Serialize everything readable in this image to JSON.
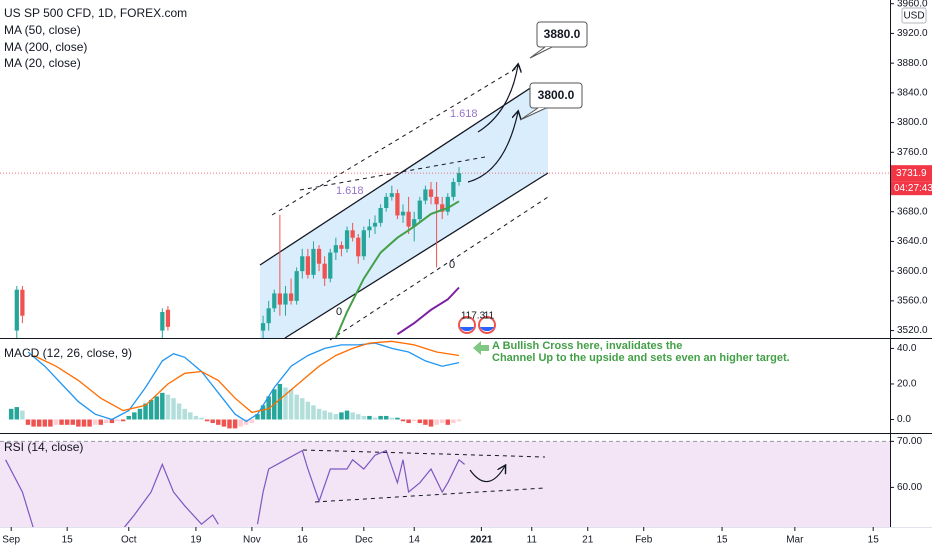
{
  "chart_data": [
    {
      "type": "candlestick",
      "title": "US SP 500 CFD, 1D, FOREX.com",
      "legend": [
        "MA (50, close)",
        "MA (200, close)",
        "MA (20, close)"
      ],
      "currency": "USD",
      "ylim": [
        3510,
        3965
      ],
      "yticks": [
        {
          "value": 3520,
          "label": "3520.0"
        },
        {
          "value": 3560,
          "label": "3560.0"
        },
        {
          "value": 3600,
          "label": "3600.0"
        },
        {
          "value": 3640,
          "label": "3640.0"
        },
        {
          "value": 3680,
          "label": "3680.0"
        },
        {
          "value": 3760,
          "label": "3760.0"
        },
        {
          "value": 3800,
          "label": "3800.0"
        },
        {
          "value": 3840,
          "label": "3840.0"
        },
        {
          "value": 3880,
          "label": "3880.0"
        },
        {
          "value": 3920,
          "label": "3920.0"
        },
        {
          "value": 3960,
          "label": "3960.0"
        }
      ],
      "x": [
        1,
        2,
        27,
        28,
        45,
        46,
        47,
        48,
        49,
        50,
        51,
        52,
        53,
        54,
        55,
        56,
        57,
        58,
        59,
        60,
        61,
        62,
        63,
        64,
        65,
        66,
        67,
        68,
        69,
        70,
        71,
        72,
        73,
        74,
        75,
        76,
        77,
        78,
        79,
        80
      ],
      "open": [
        3520,
        3575,
        3520,
        3548,
        3520,
        3530,
        3550,
        3570,
        3555,
        3570,
        3560,
        3600,
        3620,
        3595,
        3630,
        3610,
        3590,
        3625,
        3635,
        3630,
        3655,
        3645,
        3620,
        3655,
        3660,
        3665,
        3685,
        3700,
        3705,
        3675,
        3680,
        3660,
        3670,
        3695,
        3710,
        3700,
        3690,
        3680,
        3700,
        3720
      ],
      "high": [
        3580,
        3580,
        3550,
        3553,
        3540,
        3560,
        3575,
        3676,
        3580,
        3590,
        3605,
        3630,
        3630,
        3640,
        3635,
        3620,
        3630,
        3645,
        3640,
        3660,
        3665,
        3650,
        3660,
        3670,
        3675,
        3690,
        3705,
        3715,
        3710,
        3690,
        3700,
        3680,
        3700,
        3715,
        3720,
        3720,
        3700,
        3705,
        3725,
        3740
      ],
      "low": [
        3510,
        3530,
        3510,
        3520,
        3510,
        3520,
        3545,
        3540,
        3540,
        3555,
        3555,
        3590,
        3590,
        3590,
        3600,
        3580,
        3585,
        3615,
        3620,
        3625,
        3640,
        3610,
        3615,
        3645,
        3650,
        3660,
        3680,
        3695,
        3670,
        3665,
        3650,
        3640,
        3665,
        3690,
        3690,
        3605,
        3670,
        3675,
        3695,
        3715
      ],
      "close": [
        3575,
        3540,
        3545,
        3525,
        3530,
        3550,
        3570,
        3555,
        3570,
        3560,
        3600,
        3620,
        3595,
        3630,
        3610,
        3590,
        3625,
        3635,
        3630,
        3655,
        3645,
        3620,
        3655,
        3660,
        3665,
        3685,
        3700,
        3705,
        3675,
        3680,
        3660,
        3670,
        3695,
        3710,
        3700,
        3690,
        3680,
        3700,
        3720,
        3731.9
      ],
      "up_color": "#26a69a",
      "down_color": "#ef5350",
      "overlays": [
        {
          "color": "#43a047",
          "x": [
            58,
            60,
            63,
            66,
            69,
            72,
            75,
            78,
            80
          ],
          "values": [
            3510,
            3545,
            3590,
            3625,
            3645,
            3660,
            3677,
            3685,
            3694
          ]
        },
        {
          "color": "#7b1fa2",
          "x": [
            69,
            72,
            75,
            78,
            80
          ],
          "values": [
            3515,
            3530,
            3548,
            3562,
            3578
          ]
        }
      ],
      "last_price": 3731.9,
      "last_price_color": "#f23645",
      "countdown": "04:27:43",
      "annotations": {
        "target_high": "3880.0",
        "target_low": "3800.0",
        "fib_upper": "1.618",
        "fib_lower": "1.618",
        "zero_upper": "0",
        "zero_lower": "0",
        "event_a": "117.3",
        "event_b": "11",
        "note": [
          "A Bullish Cross here, invalidates the",
          "Channel Up to the upside and sets even an higher target."
        ]
      }
    },
    {
      "type": "macd",
      "label": "MACD (12, 26, close, 9)",
      "ylim": [
        -7.6,
        45.3
      ],
      "yticks": [
        {
          "value": 0,
          "label": "0.0"
        },
        {
          "value": 20,
          "label": "20.0"
        },
        {
          "value": 40,
          "label": "40.0"
        }
      ],
      "histogram": {
        "x": [
          0,
          1,
          2,
          3,
          4,
          5,
          6,
          7,
          8,
          9,
          10,
          11,
          12,
          13,
          14,
          15,
          16,
          17,
          18,
          19,
          20,
          21,
          22,
          23,
          24,
          25,
          26,
          27,
          28,
          29,
          30,
          31,
          32,
          33,
          34,
          35,
          36,
          37,
          38,
          39,
          40,
          41,
          42,
          43,
          44,
          45,
          46,
          47,
          48,
          49,
          50,
          51,
          52,
          53,
          54,
          55,
          56,
          57,
          58,
          59,
          60,
          61,
          62,
          63,
          64,
          65,
          66,
          67,
          68,
          69,
          70,
          71,
          72,
          73,
          74,
          75,
          76,
          77,
          78,
          79,
          80
        ],
        "values": [
          6,
          7,
          5,
          -3,
          -4,
          -4,
          -4,
          -4,
          -3,
          -3,
          -3,
          -3,
          -4,
          -4,
          -4,
          -3,
          -3,
          -2,
          -2,
          -1,
          -1,
          2,
          4,
          6,
          9,
          11,
          13,
          15,
          14,
          12,
          9,
          6,
          4,
          2,
          1,
          -1,
          -2,
          -3,
          -4,
          -5,
          -5,
          -4,
          -3,
          -2,
          3,
          8,
          13,
          17,
          20,
          18,
          17,
          14,
          12,
          10,
          8,
          6,
          5,
          4,
          3,
          4,
          5,
          4,
          3,
          2,
          2,
          1,
          2,
          2,
          1,
          1,
          -1,
          -2,
          -1,
          -2,
          -3,
          -4,
          -3,
          -2,
          -3,
          -2,
          -1
        ],
        "colors": [
          "#26a69a",
          "#b2dfdb",
          "#ef5350",
          "#ffcdd2"
        ]
      },
      "series": [
        {
          "color": "#2196f3",
          "x": [
            3,
            6,
            9,
            12,
            15,
            18,
            21,
            24,
            27,
            29,
            31,
            34,
            37,
            40,
            42,
            44,
            47,
            50,
            53,
            56,
            59,
            62,
            65,
            68,
            71,
            74,
            77,
            80
          ],
          "values": [
            38,
            30,
            20,
            10,
            3,
            0,
            5,
            18,
            33,
            37,
            35,
            27,
            15,
            3,
            -1,
            3,
            18,
            30,
            36,
            40,
            42,
            42,
            43,
            40,
            38,
            33,
            30,
            32
          ]
        },
        {
          "color": "#ff6d00",
          "x": [
            4,
            8,
            12,
            16,
            20,
            24,
            28,
            31,
            34,
            37,
            40,
            43,
            46,
            49,
            52,
            55,
            58,
            61,
            64,
            68,
            72,
            76,
            80
          ],
          "values": [
            36,
            30,
            22,
            12,
            5,
            8,
            20,
            26,
            27,
            22,
            12,
            4,
            6,
            14,
            22,
            30,
            36,
            40,
            43,
            44,
            42,
            38,
            36
          ]
        }
      ]
    },
    {
      "type": "line",
      "label": "RSI (14, close)",
      "color": "#7e57c2",
      "upper_band": 70,
      "band_color": "#f3e5f5",
      "ylim": [
        51.4,
        71.6
      ],
      "yticks": [
        {
          "value": 60,
          "label": "60.00"
        },
        {
          "value": 70,
          "label": "70.00"
        }
      ],
      "x": [
        -1,
        2,
        4,
        null,
        20,
        22,
        25,
        27,
        29,
        31,
        34,
        36,
        37,
        null,
        44,
        45,
        46,
        49,
        52,
        53,
        55,
        57,
        60,
        61,
        63,
        65,
        67,
        69,
        70,
        71,
        73,
        75,
        77,
        78,
        80,
        81
      ],
      "values": [
        66,
        59,
        51,
        null,
        51,
        54,
        59,
        65,
        59,
        56,
        52,
        54,
        52,
        null,
        52,
        59,
        64,
        66,
        68,
        64,
        57,
        64,
        64,
        66,
        64,
        67,
        68,
        61,
        66,
        59,
        61,
        64,
        59,
        61,
        66,
        65
      ],
      "xlim": [
        -2,
        157
      ],
      "xticks": [
        {
          "value": 0,
          "label": "Sep"
        },
        {
          "value": 10,
          "label": "15"
        },
        {
          "value": 21,
          "label": "Oct"
        },
        {
          "value": 33,
          "label": "19"
        },
        {
          "value": 43,
          "label": "Nov"
        },
        {
          "value": 52,
          "label": "16"
        },
        {
          "value": 63,
          "label": "Dec"
        },
        {
          "value": 72,
          "label": "14"
        },
        {
          "value": 84,
          "label": "2021"
        },
        {
          "value": 93,
          "label": "11"
        },
        {
          "value": 103,
          "label": "21"
        },
        {
          "value": 113,
          "label": "Feb"
        },
        {
          "value": 127,
          "label": "15"
        },
        {
          "value": 140,
          "label": "Mar"
        },
        {
          "value": 154,
          "label": "15"
        }
      ]
    }
  ]
}
